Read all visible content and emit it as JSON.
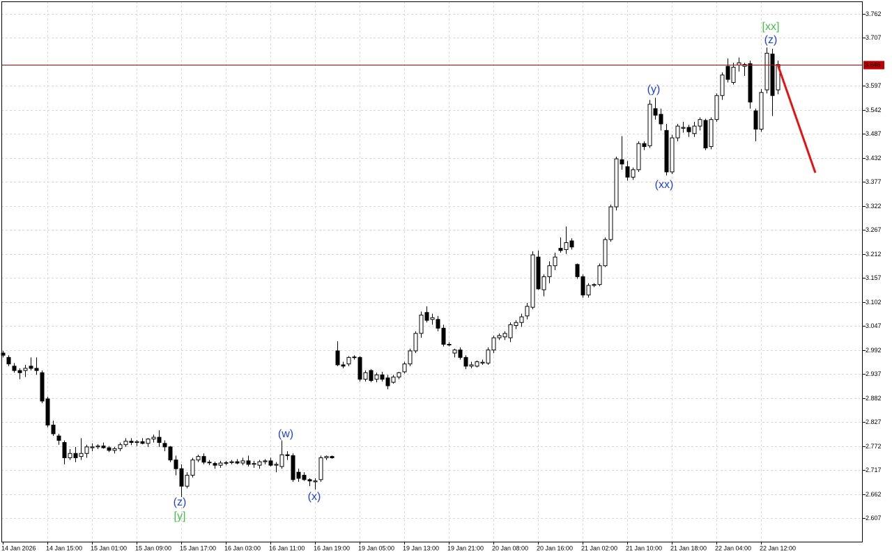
{
  "chart_data": {
    "type": "candlestick",
    "categories": [
      "14 Jan 2026",
      null,
      null,
      null,
      null,
      null,
      null,
      null,
      "14 Jan 15:00",
      null,
      null,
      null,
      null,
      null,
      null,
      null,
      "15 Jan 01:00",
      null,
      null,
      null,
      null,
      null,
      null,
      null,
      "15 Jan 09:00",
      null,
      null,
      null,
      null,
      null,
      null,
      null,
      "15 Jan 17:00",
      null,
      null,
      null,
      null,
      null,
      null,
      null,
      "16 Jan 03:00",
      null,
      null,
      null,
      null,
      null,
      null,
      null,
      "16 Jan 11:00",
      null,
      null,
      null,
      null,
      null,
      null,
      null,
      "16 Jan 19:00",
      null,
      null,
      null,
      null,
      null,
      null,
      null,
      "19 Jan 05:00",
      null,
      null,
      null,
      null,
      null,
      null,
      null,
      "19 Jan 13:00",
      null,
      null,
      null,
      null,
      null,
      null,
      null,
      "19 Jan 21:00",
      null,
      null,
      null,
      null,
      null,
      null,
      null,
      "20 Jan 08:00",
      null,
      null,
      null,
      null,
      null,
      null,
      null,
      "20 Jan 16:00",
      null,
      null,
      null,
      null,
      null,
      null,
      null,
      "21 Jan 02:00",
      null,
      null,
      null,
      null,
      null,
      null,
      null,
      "21 Jan 10:00",
      null,
      null,
      null,
      null,
      null,
      null,
      null,
      "21 Jan 18:00",
      null,
      null,
      null,
      null,
      null,
      null,
      null,
      "22 Jan 04:00",
      null,
      null,
      null,
      null,
      null,
      null,
      null,
      "22 Jan 12:00",
      null,
      null,
      null
    ],
    "open": [
      2.985,
      2.975,
      2.955,
      2.945,
      2.945,
      2.955,
      2.95,
      2.94,
      2.88,
      2.82,
      2.795,
      2.78,
      2.745,
      2.755,
      2.748,
      2.755,
      2.768,
      2.77,
      2.772,
      2.768,
      2.762,
      2.766,
      2.775,
      2.783,
      2.78,
      2.782,
      2.778,
      2.788,
      2.792,
      2.778,
      2.77,
      2.74,
      2.72,
      2.68,
      2.705,
      2.74,
      2.748,
      2.735,
      2.732,
      2.728,
      2.733,
      2.734,
      2.736,
      2.733,
      2.738,
      2.73,
      2.728,
      2.736,
      2.738,
      2.728,
      2.725,
      2.752,
      2.75,
      2.712,
      2.705,
      2.695,
      2.69,
      2.695,
      2.745,
      2.748,
      2.99,
      2.958,
      2.96,
      2.975,
      2.975,
      2.925,
      2.945,
      2.925,
      2.935,
      2.928,
      2.918,
      2.93,
      2.942,
      2.96,
      2.99,
      3.03,
      3.078,
      3.062,
      3.062,
      3.042,
      3.005,
      2.985,
      2.992,
      2.975,
      2.955,
      2.955,
      2.962,
      2.962,
      2.992,
      3.02,
      3.022,
      3.02,
      3.048,
      3.055,
      3.07,
      3.09,
      3.205,
      3.13,
      3.16,
      3.185,
      3.225,
      3.222,
      3.242,
      3.188,
      3.16,
      3.118,
      3.14,
      3.142,
      3.185,
      3.245,
      3.32,
      3.428,
      3.412,
      3.388,
      3.405,
      3.465,
      3.46,
      3.545,
      3.532,
      3.495,
      3.4,
      3.478,
      3.5,
      3.502,
      3.488,
      3.505,
      3.518,
      3.458,
      3.52,
      3.575,
      3.642,
      3.605,
      3.645,
      3.642,
      3.648,
      3.54,
      3.498,
      3.588,
      3.67,
      3.588
    ],
    "high": [
      2.99,
      2.98,
      2.962,
      2.95,
      2.958,
      2.975,
      2.975,
      2.945,
      2.885,
      2.83,
      2.8,
      2.785,
      2.765,
      2.77,
      2.79,
      2.775,
      2.778,
      2.776,
      2.78,
      2.772,
      2.77,
      2.78,
      2.79,
      2.79,
      2.786,
      2.79,
      2.79,
      2.798,
      2.808,
      2.785,
      2.772,
      2.75,
      2.73,
      2.712,
      2.745,
      2.752,
      2.755,
      2.74,
      2.736,
      2.738,
      2.738,
      2.74,
      2.742,
      2.745,
      2.75,
      2.738,
      2.74,
      2.742,
      2.745,
      2.735,
      2.785,
      2.76,
      2.755,
      2.72,
      2.712,
      2.698,
      2.698,
      2.75,
      2.75,
      2.75,
      3.012,
      2.965,
      2.978,
      2.98,
      2.978,
      2.945,
      2.948,
      2.94,
      2.942,
      2.935,
      2.935,
      2.942,
      2.965,
      2.995,
      3.035,
      3.08,
      3.092,
      3.075,
      3.07,
      3.05,
      3.01,
      2.995,
      2.998,
      2.98,
      2.965,
      2.968,
      2.97,
      2.998,
      3.025,
      3.03,
      3.035,
      3.055,
      3.06,
      3.075,
      3.1,
      3.218,
      3.22,
      3.165,
      3.195,
      3.215,
      3.25,
      3.275,
      3.248,
      3.19,
      3.165,
      3.145,
      3.145,
      3.19,
      3.25,
      3.325,
      3.435,
      3.482,
      3.425,
      3.41,
      3.47,
      3.47,
      3.565,
      3.57,
      3.545,
      3.51,
      3.485,
      3.51,
      3.515,
      3.508,
      3.515,
      3.525,
      3.522,
      3.525,
      3.58,
      3.628,
      3.66,
      3.65,
      3.662,
      3.65,
      3.655,
      3.545,
      3.59,
      3.685,
      3.682,
      3.655
    ],
    "low": [
      2.975,
      2.955,
      2.94,
      2.925,
      2.93,
      2.945,
      2.935,
      2.87,
      2.815,
      2.795,
      2.775,
      2.73,
      2.74,
      2.735,
      2.74,
      2.745,
      2.76,
      2.765,
      2.766,
      2.758,
      2.755,
      2.76,
      2.77,
      2.774,
      2.772,
      2.776,
      2.77,
      2.78,
      2.77,
      2.76,
      2.735,
      2.705,
      2.655,
      2.675,
      2.7,
      2.735,
      2.73,
      2.728,
      2.72,
      2.722,
      2.728,
      2.73,
      2.73,
      2.728,
      2.725,
      2.722,
      2.72,
      2.73,
      2.725,
      2.712,
      2.72,
      2.74,
      2.69,
      2.69,
      2.692,
      2.68,
      2.672,
      2.69,
      2.74,
      2.743,
      2.955,
      2.95,
      2.955,
      2.97,
      2.92,
      2.92,
      2.918,
      2.918,
      2.92,
      2.902,
      2.915,
      2.925,
      2.938,
      2.955,
      2.985,
      3.02,
      3.055,
      3.05,
      3.035,
      3.0,
      3.0,
      2.975,
      2.97,
      2.948,
      2.95,
      2.952,
      2.958,
      2.958,
      2.985,
      3.015,
      3.015,
      3.01,
      3.04,
      3.045,
      3.062,
      3.085,
      3.13,
      3.115,
      3.145,
      3.175,
      3.215,
      3.212,
      3.222,
      3.155,
      3.112,
      3.112,
      3.136,
      3.138,
      3.182,
      3.24,
      3.312,
      3.405,
      3.38,
      3.382,
      3.4,
      3.45,
      3.455,
      3.52,
      3.495,
      3.392,
      3.395,
      3.47,
      3.49,
      3.48,
      3.48,
      3.495,
      3.45,
      3.452,
      3.515,
      3.565,
      3.605,
      3.6,
      3.63,
      3.62,
      3.545,
      3.47,
      3.492,
      3.58,
      3.528,
      3.578
    ],
    "close": [
      2.98,
      2.96,
      2.945,
      2.94,
      2.95,
      2.95,
      2.945,
      2.875,
      2.82,
      2.8,
      2.785,
      2.745,
      2.755,
      2.745,
      2.755,
      2.77,
      2.77,
      2.772,
      2.768,
      2.762,
      2.766,
      2.775,
      2.783,
      2.78,
      2.782,
      2.778,
      2.788,
      2.792,
      2.78,
      2.77,
      2.74,
      2.72,
      2.68,
      2.705,
      2.74,
      2.748,
      2.735,
      2.735,
      2.728,
      2.733,
      2.734,
      2.736,
      2.733,
      2.738,
      2.73,
      2.732,
      2.736,
      2.738,
      2.728,
      2.73,
      2.752,
      2.75,
      2.695,
      2.698,
      2.695,
      2.692,
      2.692,
      2.745,
      2.748,
      2.745,
      2.958,
      2.955,
      2.975,
      2.976,
      2.925,
      2.94,
      2.922,
      2.935,
      2.925,
      2.91,
      2.93,
      2.94,
      2.96,
      2.99,
      3.03,
      3.072,
      3.06,
      3.066,
      3.042,
      3.005,
      3.004,
      2.992,
      2.975,
      2.955,
      2.958,
      2.965,
      2.964,
      2.992,
      3.02,
      3.025,
      3.03,
      3.05,
      3.055,
      3.068,
      3.092,
      3.21,
      3.132,
      3.16,
      3.185,
      3.205,
      3.22,
      3.238,
      3.228,
      3.16,
      3.118,
      3.14,
      3.142,
      3.185,
      3.245,
      3.32,
      3.43,
      3.418,
      3.388,
      3.405,
      3.465,
      3.458,
      3.555,
      3.53,
      3.51,
      3.4,
      3.478,
      3.505,
      3.502,
      3.492,
      3.505,
      3.52,
      3.455,
      3.52,
      3.575,
      3.622,
      3.612,
      3.64,
      3.65,
      3.646,
      3.56,
      3.498,
      3.582,
      3.672,
      3.575,
      3.646
    ],
    "ylim": [
      2.5528,
      3.7907
    ],
    "yticks": [
      3.762,
      3.707,
      3.597,
      3.542,
      3.487,
      3.432,
      3.377,
      3.322,
      3.267,
      3.212,
      3.157,
      3.102,
      3.047,
      2.992,
      2.937,
      2.882,
      2.827,
      2.772,
      2.717,
      2.662,
      2.607
    ],
    "grid": true,
    "up_color": "#ffffff",
    "down_color": "#000000",
    "current_price": {
      "value": 3.646,
      "color": "#c00000"
    },
    "forecast": {
      "color": "#e81010",
      "values": [
        3.646,
        3.398
      ]
    },
    "annotations": [
      {
        "text": "[xx]",
        "color": "#44c044"
      },
      {
        "text": "(z)",
        "color": "#1f3fd8"
      },
      {
        "text": "(y)",
        "color": "#1f3fd8"
      },
      {
        "text": "(xx)",
        "color": "#1f3fd8"
      },
      {
        "text": "(w)",
        "color": "#1f3fd8"
      },
      {
        "text": "(x)",
        "color": "#1f3fd8"
      },
      {
        "text": "(z)",
        "color": "#1f3fd8"
      },
      {
        "text": "[y]",
        "color": "#44c044"
      }
    ]
  }
}
